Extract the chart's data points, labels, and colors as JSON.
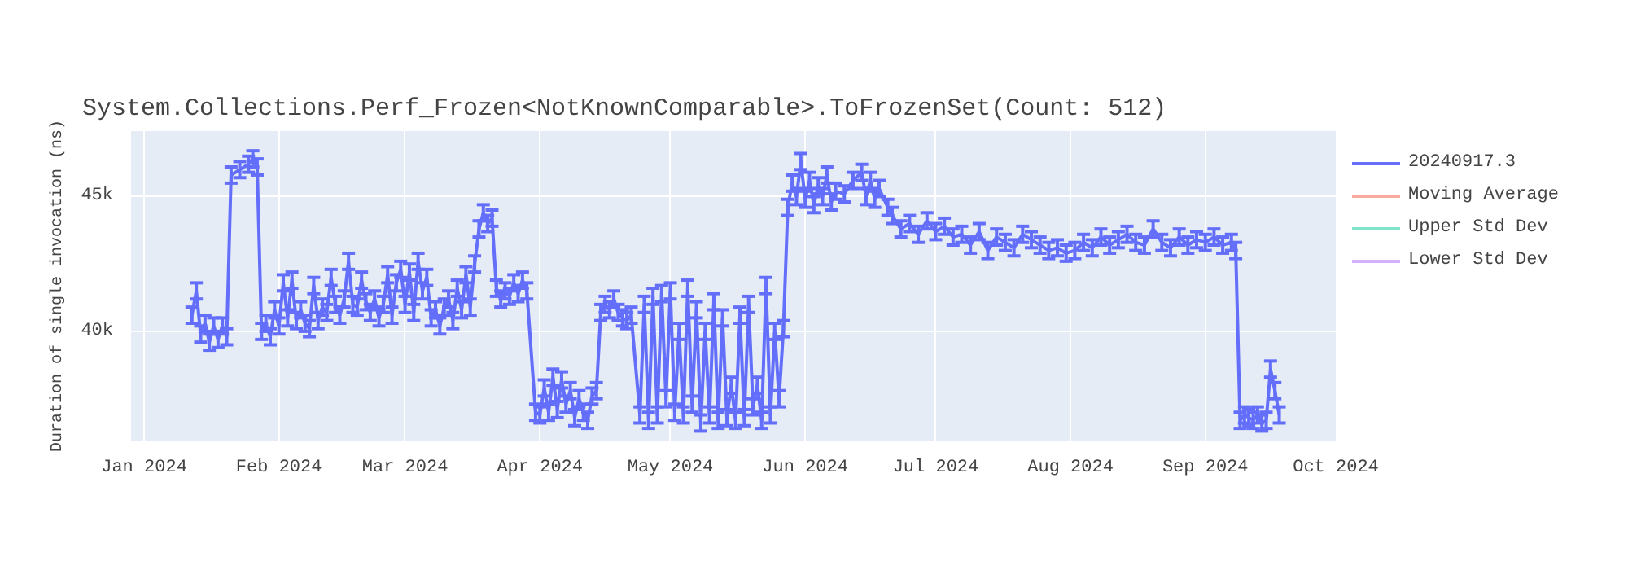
{
  "chart_data": {
    "type": "line",
    "title": "System.Collections.Perf_Frozen<NotKnownComparable>.ToFrozenSet(Count: 512)",
    "ylabel": "Duration of single invocation (ns)",
    "x": [
      "2024-01-12",
      "2024-01-13",
      "2024-01-14",
      "2024-01-15",
      "2024-01-16",
      "2024-01-17",
      "2024-01-18",
      "2024-01-19",
      "2024-01-20",
      "2024-01-21",
      "2024-01-23",
      "2024-01-25",
      "2024-01-26",
      "2024-01-27",
      "2024-01-28",
      "2024-01-29",
      "2024-01-30",
      "2024-01-31",
      "2024-02-01",
      "2024-02-02",
      "2024-02-03",
      "2024-02-04",
      "2024-02-05",
      "2024-02-06",
      "2024-02-07",
      "2024-02-08",
      "2024-02-09",
      "2024-02-10",
      "2024-02-11",
      "2024-02-12",
      "2024-02-13",
      "2024-02-14",
      "2024-02-15",
      "2024-02-16",
      "2024-02-17",
      "2024-02-18",
      "2024-02-19",
      "2024-02-20",
      "2024-02-21",
      "2024-02-22",
      "2024-02-23",
      "2024-02-24",
      "2024-02-25",
      "2024-02-26",
      "2024-02-27",
      "2024-02-28",
      "2024-02-29",
      "2024-03-01",
      "2024-03-02",
      "2024-03-03",
      "2024-03-04",
      "2024-03-05",
      "2024-03-06",
      "2024-03-07",
      "2024-03-08",
      "2024-03-09",
      "2024-03-10",
      "2024-03-11",
      "2024-03-12",
      "2024-03-13",
      "2024-03-14",
      "2024-03-15",
      "2024-03-16",
      "2024-03-17",
      "2024-03-18",
      "2024-03-19",
      "2024-03-20",
      "2024-03-21",
      "2024-03-22",
      "2024-03-23",
      "2024-03-24",
      "2024-03-25",
      "2024-03-26",
      "2024-03-27",
      "2024-03-28",
      "2024-03-29",
      "2024-03-31",
      "2024-04-01",
      "2024-04-02",
      "2024-04-03",
      "2024-04-04",
      "2024-04-05",
      "2024-04-06",
      "2024-04-07",
      "2024-04-08",
      "2024-04-09",
      "2024-04-10",
      "2024-04-11",
      "2024-04-12",
      "2024-04-13",
      "2024-04-14",
      "2024-04-15",
      "2024-04-16",
      "2024-04-17",
      "2024-04-18",
      "2024-04-19",
      "2024-04-20",
      "2024-04-21",
      "2024-04-22",
      "2024-04-24",
      "2024-04-25",
      "2024-04-26",
      "2024-04-27",
      "2024-04-28",
      "2024-04-29",
      "2024-04-30",
      "2024-05-01",
      "2024-05-02",
      "2024-05-03",
      "2024-05-04",
      "2024-05-05",
      "2024-05-06",
      "2024-05-07",
      "2024-05-08",
      "2024-05-09",
      "2024-05-10",
      "2024-05-11",
      "2024-05-12",
      "2024-05-13",
      "2024-05-14",
      "2024-05-15",
      "2024-05-16",
      "2024-05-17",
      "2024-05-18",
      "2024-05-19",
      "2024-05-20",
      "2024-05-21",
      "2024-05-22",
      "2024-05-23",
      "2024-05-24",
      "2024-05-25",
      "2024-05-26",
      "2024-05-27",
      "2024-05-28",
      "2024-05-29",
      "2024-05-30",
      "2024-05-31",
      "2024-06-01",
      "2024-06-02",
      "2024-06-03",
      "2024-06-04",
      "2024-06-05",
      "2024-06-06",
      "2024-06-07",
      "2024-06-08",
      "2024-06-10",
      "2024-06-12",
      "2024-06-14",
      "2024-06-15",
      "2024-06-16",
      "2024-06-17",
      "2024-06-18",
      "2024-06-20",
      "2024-06-21",
      "2024-06-23",
      "2024-06-25",
      "2024-06-27",
      "2024-06-29",
      "2024-07-01",
      "2024-07-03",
      "2024-07-05",
      "2024-07-07",
      "2024-07-09",
      "2024-07-11",
      "2024-07-13",
      "2024-07-15",
      "2024-07-17",
      "2024-07-19",
      "2024-07-21",
      "2024-07-23",
      "2024-07-25",
      "2024-07-27",
      "2024-07-29",
      "2024-07-31",
      "2024-08-02",
      "2024-08-04",
      "2024-08-06",
      "2024-08-08",
      "2024-08-10",
      "2024-08-12",
      "2024-08-14",
      "2024-08-16",
      "2024-08-18",
      "2024-08-20",
      "2024-08-22",
      "2024-08-24",
      "2024-08-26",
      "2024-08-28",
      "2024-08-30",
      "2024-09-01",
      "2024-09-03",
      "2024-09-05",
      "2024-09-07",
      "2024-09-08",
      "2024-09-09",
      "2024-09-10",
      "2024-09-11",
      "2024-09-12",
      "2024-09-13",
      "2024-09-14",
      "2024-09-15",
      "2024-09-16",
      "2024-09-17",
      "2024-09-18"
    ],
    "series": [
      {
        "name": "20240917.3",
        "color": "#636efa",
        "values": [
          40600,
          41500,
          39900,
          40300,
          39600,
          40200,
          39700,
          40200,
          39800,
          45800,
          46000,
          46200,
          46400,
          46100,
          40000,
          40300,
          39800,
          40800,
          40200,
          41800,
          40500,
          41900,
          40400,
          40800,
          40300,
          40100,
          41700,
          40400,
          40900,
          40700,
          42000,
          41000,
          40600,
          41200,
          42600,
          41000,
          40900,
          41900,
          41100,
          40700,
          41200,
          40500,
          41000,
          42100,
          40600,
          41800,
          42300,
          41000,
          42200,
          40700,
          42600,
          41500,
          42000,
          40500,
          40800,
          40200,
          40900,
          41200,
          40400,
          41600,
          40800,
          42100,
          40900,
          42500,
          43800,
          44400,
          44000,
          44200,
          41600,
          41200,
          41500,
          41300,
          41800,
          41400,
          41900,
          41500,
          37000,
          36900,
          37900,
          37000,
          38300,
          37100,
          38200,
          37300,
          37800,
          36800,
          37500,
          37000,
          36700,
          37600,
          37800,
          40700,
          41000,
          40800,
          41200,
          40700,
          40500,
          40400,
          40600,
          36900,
          41000,
          36700,
          41300,
          36900,
          41400,
          37500,
          41500,
          37000,
          40000,
          36900,
          41600,
          37300,
          40800,
          36600,
          40000,
          36900,
          41100,
          36700,
          40500,
          36800,
          38000,
          36700,
          40600,
          36800,
          41000,
          37200,
          38000,
          36700,
          41700,
          36900,
          40000,
          37500,
          40100,
          44600,
          45500,
          45000,
          46300,
          44900,
          45600,
          44700,
          45400,
          45000,
          45800,
          44800,
          45200,
          45100,
          45600,
          45900,
          45000,
          45600,
          44900,
          45300,
          44600,
          44300,
          43800,
          44000,
          43600,
          44100,
          43700,
          43900,
          43500,
          43600,
          43200,
          43700,
          43000,
          43500,
          43300,
          43100,
          43600,
          43400,
          43200,
          43000,
          43100,
          42900,
          43000,
          43300,
          43100,
          43500,
          43200,
          43400,
          43600,
          43300,
          43200,
          43800,
          43300,
          43100,
          43500,
          43200,
          43400,
          43300,
          43500,
          43200,
          43300,
          43000,
          36700,
          36900,
          36800,
          36700,
          36900,
          36600,
          36700,
          38600,
          37800,
          36900
        ],
        "errors": [
          300,
          300,
          300,
          300,
          300,
          300,
          300,
          300,
          300,
          300,
          300,
          300,
          300,
          300,
          300,
          300,
          300,
          300,
          300,
          300,
          300,
          300,
          300,
          300,
          300,
          300,
          300,
          300,
          300,
          300,
          300,
          300,
          300,
          300,
          300,
          300,
          300,
          300,
          300,
          300,
          300,
          300,
          300,
          300,
          300,
          300,
          300,
          300,
          300,
          300,
          300,
          300,
          300,
          300,
          300,
          300,
          300,
          300,
          300,
          300,
          300,
          300,
          300,
          300,
          300,
          300,
          300,
          300,
          300,
          300,
          300,
          300,
          300,
          300,
          300,
          300,
          300,
          300,
          300,
          300,
          300,
          300,
          300,
          300,
          300,
          300,
          300,
          300,
          300,
          300,
          300,
          300,
          300,
          300,
          300,
          300,
          300,
          300,
          300,
          300,
          300,
          300,
          300,
          300,
          300,
          300,
          300,
          300,
          300,
          300,
          300,
          300,
          300,
          300,
          300,
          300,
          300,
          300,
          300,
          300,
          300,
          300,
          300,
          300,
          300,
          300,
          300,
          300,
          300,
          300,
          300,
          300,
          300,
          300,
          300,
          300,
          300,
          300,
          300,
          300,
          300,
          300,
          300,
          300,
          300,
          300,
          300,
          300,
          300,
          300,
          300,
          300,
          300,
          300,
          300,
          300,
          300,
          300,
          300,
          300,
          300,
          300,
          300,
          300,
          300,
          300,
          300,
          300,
          300,
          300,
          300,
          300,
          300,
          300,
          300,
          300,
          300,
          300,
          300,
          300,
          300,
          300,
          300,
          300,
          300,
          300,
          300,
          300,
          300,
          300,
          300,
          300,
          300,
          300,
          300,
          300,
          300,
          300,
          300,
          300,
          300,
          300,
          300,
          300
        ]
      },
      {
        "name": "Moving Average",
        "color": "#ef553b",
        "values": [
          null,
          null,
          null,
          null,
          null,
          null,
          null,
          null,
          null,
          null,
          null,
          null,
          null,
          null,
          null,
          null,
          null,
          null,
          null,
          null,
          null,
          null,
          null,
          null,
          null,
          null,
          null,
          null,
          null,
          null,
          null,
          null,
          null,
          null,
          null,
          null,
          null,
          null,
          null,
          null,
          null,
          null,
          null,
          null,
          null,
          null,
          null,
          null,
          null,
          null,
          null,
          null,
          null,
          null,
          null,
          null,
          null,
          null,
          null,
          null,
          null,
          null,
          null,
          null,
          null,
          null,
          null,
          null,
          null,
          null,
          null,
          null,
          null,
          null,
          null,
          null,
          null,
          null,
          null,
          null,
          null,
          null,
          null,
          null,
          null,
          null,
          null,
          null,
          null,
          null,
          null,
          null,
          null,
          null,
          null,
          null,
          null,
          null,
          null,
          null,
          null,
          null,
          null,
          null,
          null,
          null,
          null,
          null,
          null,
          null,
          null,
          null,
          null,
          null,
          null,
          null,
          null,
          null,
          null,
          null,
          null,
          null,
          null,
          null,
          null,
          null,
          null,
          null,
          null,
          null,
          null,
          null,
          null,
          null,
          null,
          null,
          null,
          null,
          null,
          null,
          null,
          null,
          null,
          null,
          null,
          null,
          null,
          null,
          null,
          null,
          null,
          null,
          null,
          null,
          null,
          null,
          null,
          null,
          null,
          null,
          null,
          null,
          null,
          null,
          null,
          null,
          null,
          null,
          null,
          null,
          null,
          null,
          null,
          null,
          null,
          null,
          null,
          null,
          null,
          null,
          null,
          null,
          null,
          null,
          null,
          null,
          null,
          null,
          null,
          null,
          null,
          null,
          null,
          null,
          null,
          null,
          null,
          null,
          null,
          null,
          null,
          null,
          null,
          null
        ]
      },
      {
        "name": "Upper Std Dev",
        "color": "#00cc96",
        "values": [
          null,
          null,
          null,
          null,
          null,
          null,
          null,
          null,
          null,
          null,
          null,
          null,
          null,
          null,
          null,
          null,
          null,
          null,
          null,
          null,
          null,
          null,
          null,
          null,
          null,
          null,
          null,
          null,
          null,
          null,
          null,
          null,
          null,
          null,
          null,
          null,
          null,
          null,
          null,
          null,
          null,
          null,
          null,
          null,
          null,
          null,
          null,
          null,
          null,
          null,
          null,
          null,
          null,
          null,
          null,
          null,
          null,
          null,
          null,
          null,
          null,
          null,
          null,
          null,
          null,
          null,
          null,
          null,
          null,
          null,
          null,
          null,
          null,
          null,
          null,
          null,
          null,
          null,
          null,
          null,
          null,
          null,
          null,
          null,
          null,
          null,
          null,
          null,
          null,
          null,
          null,
          null,
          null,
          null,
          null,
          null,
          null,
          null,
          null,
          null,
          null,
          null,
          null,
          null,
          null,
          null,
          null,
          null,
          null,
          null,
          null,
          null,
          null,
          null,
          null,
          null,
          null,
          null,
          null,
          null,
          null,
          null,
          null,
          null,
          null,
          null,
          null,
          null,
          null,
          null,
          null,
          null,
          null,
          null,
          null,
          null,
          null,
          null,
          null,
          null,
          null,
          null,
          null,
          null,
          null,
          null,
          null,
          null,
          null,
          null,
          null,
          null,
          null,
          null,
          null,
          null,
          null,
          null,
          null,
          null,
          null,
          null,
          null,
          null,
          null,
          null,
          null,
          null,
          null,
          null,
          null,
          null,
          null,
          null,
          null,
          null,
          null,
          null,
          null,
          null,
          null,
          null,
          null,
          null,
          null,
          null,
          null,
          null,
          null,
          null,
          null,
          null,
          null,
          null,
          null,
          null,
          null,
          null,
          null,
          null,
          null,
          null,
          null,
          null
        ]
      },
      {
        "name": "Lower Std Dev",
        "color": "#ab63fa",
        "values": [
          null,
          null,
          null,
          null,
          null,
          null,
          null,
          null,
          null,
          null,
          null,
          null,
          null,
          null,
          null,
          null,
          null,
          null,
          null,
          null,
          null,
          null,
          null,
          null,
          null,
          null,
          null,
          null,
          null,
          null,
          null,
          null,
          null,
          null,
          null,
          null,
          null,
          null,
          null,
          null,
          null,
          null,
          null,
          null,
          null,
          null,
          null,
          null,
          null,
          null,
          null,
          null,
          null,
          null,
          null,
          null,
          null,
          null,
          null,
          null,
          null,
          null,
          null,
          null,
          null,
          null,
          null,
          null,
          null,
          null,
          null,
          null,
          null,
          null,
          null,
          null,
          null,
          null,
          null,
          null,
          null,
          null,
          null,
          null,
          null,
          null,
          null,
          null,
          null,
          null,
          null,
          null,
          null,
          null,
          null,
          null,
          null,
          null,
          null,
          null,
          null,
          null,
          null,
          null,
          null,
          null,
          null,
          null,
          null,
          null,
          null,
          null,
          null,
          null,
          null,
          null,
          null,
          null,
          null,
          null,
          null,
          null,
          null,
          null,
          null,
          null,
          null,
          null,
          null,
          null,
          null,
          null,
          null,
          null,
          null,
          null,
          null,
          null,
          null,
          null,
          null,
          null,
          null,
          null,
          null,
          null,
          null,
          null,
          null,
          null,
          null,
          null,
          null,
          null,
          null,
          null,
          null,
          null,
          null,
          null,
          null,
          null,
          null,
          null,
          null,
          null,
          null,
          null,
          null,
          null,
          null,
          null,
          null,
          null,
          null,
          null,
          null,
          null,
          null,
          null,
          null,
          null,
          null,
          null,
          null,
          null,
          null,
          null,
          null,
          null,
          null,
          null,
          null,
          null,
          null,
          null,
          null,
          null,
          null,
          null,
          null,
          null,
          null,
          null
        ]
      }
    ],
    "xlim": [
      "2023-12-29",
      "2024-10-01"
    ],
    "xticks": [
      {
        "value": "2024-01-01",
        "label": "Jan 2024"
      },
      {
        "value": "2024-02-01",
        "label": "Feb 2024"
      },
      {
        "value": "2024-03-01",
        "label": "Mar 2024"
      },
      {
        "value": "2024-04-01",
        "label": "Apr 2024"
      },
      {
        "value": "2024-05-01",
        "label": "May 2024"
      },
      {
        "value": "2024-06-01",
        "label": "Jun 2024"
      },
      {
        "value": "2024-07-01",
        "label": "Jul 2024"
      },
      {
        "value": "2024-08-01",
        "label": "Aug 2024"
      },
      {
        "value": "2024-09-01",
        "label": "Sep 2024"
      },
      {
        "value": "2024-10-01",
        "label": "Oct 2024"
      }
    ],
    "ylim": [
      35950,
      47430
    ],
    "yticks": [
      {
        "value": 40000,
        "label": "40k"
      },
      {
        "value": 45000,
        "label": "45k"
      }
    ],
    "grid": true,
    "legend": "top right",
    "marker": "none",
    "line_style": "solid"
  }
}
